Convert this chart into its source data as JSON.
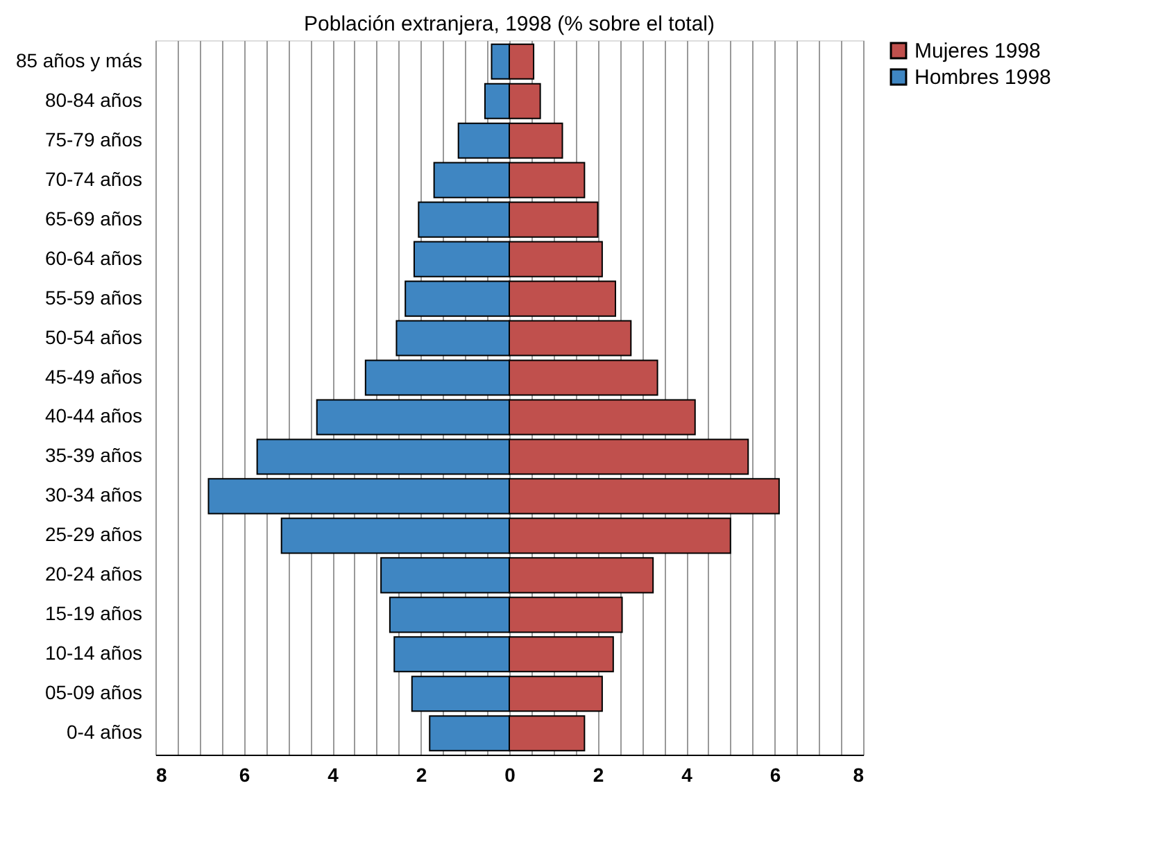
{
  "chart_data": {
    "type": "bar",
    "orientation": "horizontal",
    "title": "Población extranjera, 1998 (% sobre el total)",
    "categories": [
      "85 años y más",
      "80-84 años",
      "75-79 años",
      "70-74 años",
      "65-69 años",
      "60-64 años",
      "55-59 años",
      "50-54 años",
      "45-49 años",
      "40-44 años",
      "35-39 años",
      "30-34 años",
      "25-29 años",
      "20-24 años",
      "15-19 años",
      "10-14 años",
      "05-09 años",
      "0-4 años"
    ],
    "series": [
      {
        "name": "Mujeres 1998",
        "color": "#c0504d",
        "values": [
          0.55,
          0.7,
          1.2,
          1.7,
          2.0,
          2.1,
          2.4,
          2.75,
          3.35,
          4.2,
          5.4,
          6.1,
          5.0,
          3.25,
          2.55,
          2.35,
          2.1,
          1.7
        ]
      },
      {
        "name": "Hombres 1998",
        "color": "#3f86c2",
        "values": [
          -0.4,
          -0.55,
          -1.15,
          -1.7,
          -2.05,
          -2.15,
          -2.35,
          -2.55,
          -3.25,
          -4.35,
          -5.7,
          -6.8,
          -5.15,
          -2.9,
          -2.7,
          -2.6,
          -2.2,
          -1.8
        ]
      }
    ],
    "xlim": [
      -8,
      8
    ],
    "xticks": [
      {
        "value": -8,
        "label": "8"
      },
      {
        "value": -7.5,
        "label": null
      },
      {
        "value": -7,
        "label": null
      },
      {
        "value": -6.5,
        "label": null
      },
      {
        "value": -6,
        "label": "6"
      },
      {
        "value": -5.5,
        "label": null
      },
      {
        "value": -5,
        "label": null
      },
      {
        "value": -4.5,
        "label": null
      },
      {
        "value": -4,
        "label": "4"
      },
      {
        "value": -3.5,
        "label": null
      },
      {
        "value": -3,
        "label": null
      },
      {
        "value": -2.5,
        "label": null
      },
      {
        "value": -2,
        "label": "2"
      },
      {
        "value": -1.5,
        "label": null
      },
      {
        "value": -1,
        "label": null
      },
      {
        "value": -0.5,
        "label": null
      },
      0,
      {
        "value": 0.5,
        "label": null
      },
      {
        "value": 1,
        "label": null
      },
      {
        "value": 1.5,
        "label": null
      },
      2,
      {
        "value": 2.5,
        "label": null
      },
      {
        "value": 3,
        "label": null
      },
      {
        "value": 3.5,
        "label": null
      },
      4,
      {
        "value": 4.5,
        "label": null
      },
      {
        "value": 5,
        "label": null
      },
      {
        "value": 5.5,
        "label": null
      },
      6,
      {
        "value": 6.5,
        "label": null
      },
      {
        "value": 7,
        "label": null
      },
      {
        "value": 7.5,
        "label": null
      },
      8
    ],
    "stacked": true,
    "grid": "x",
    "legend": "right"
  }
}
